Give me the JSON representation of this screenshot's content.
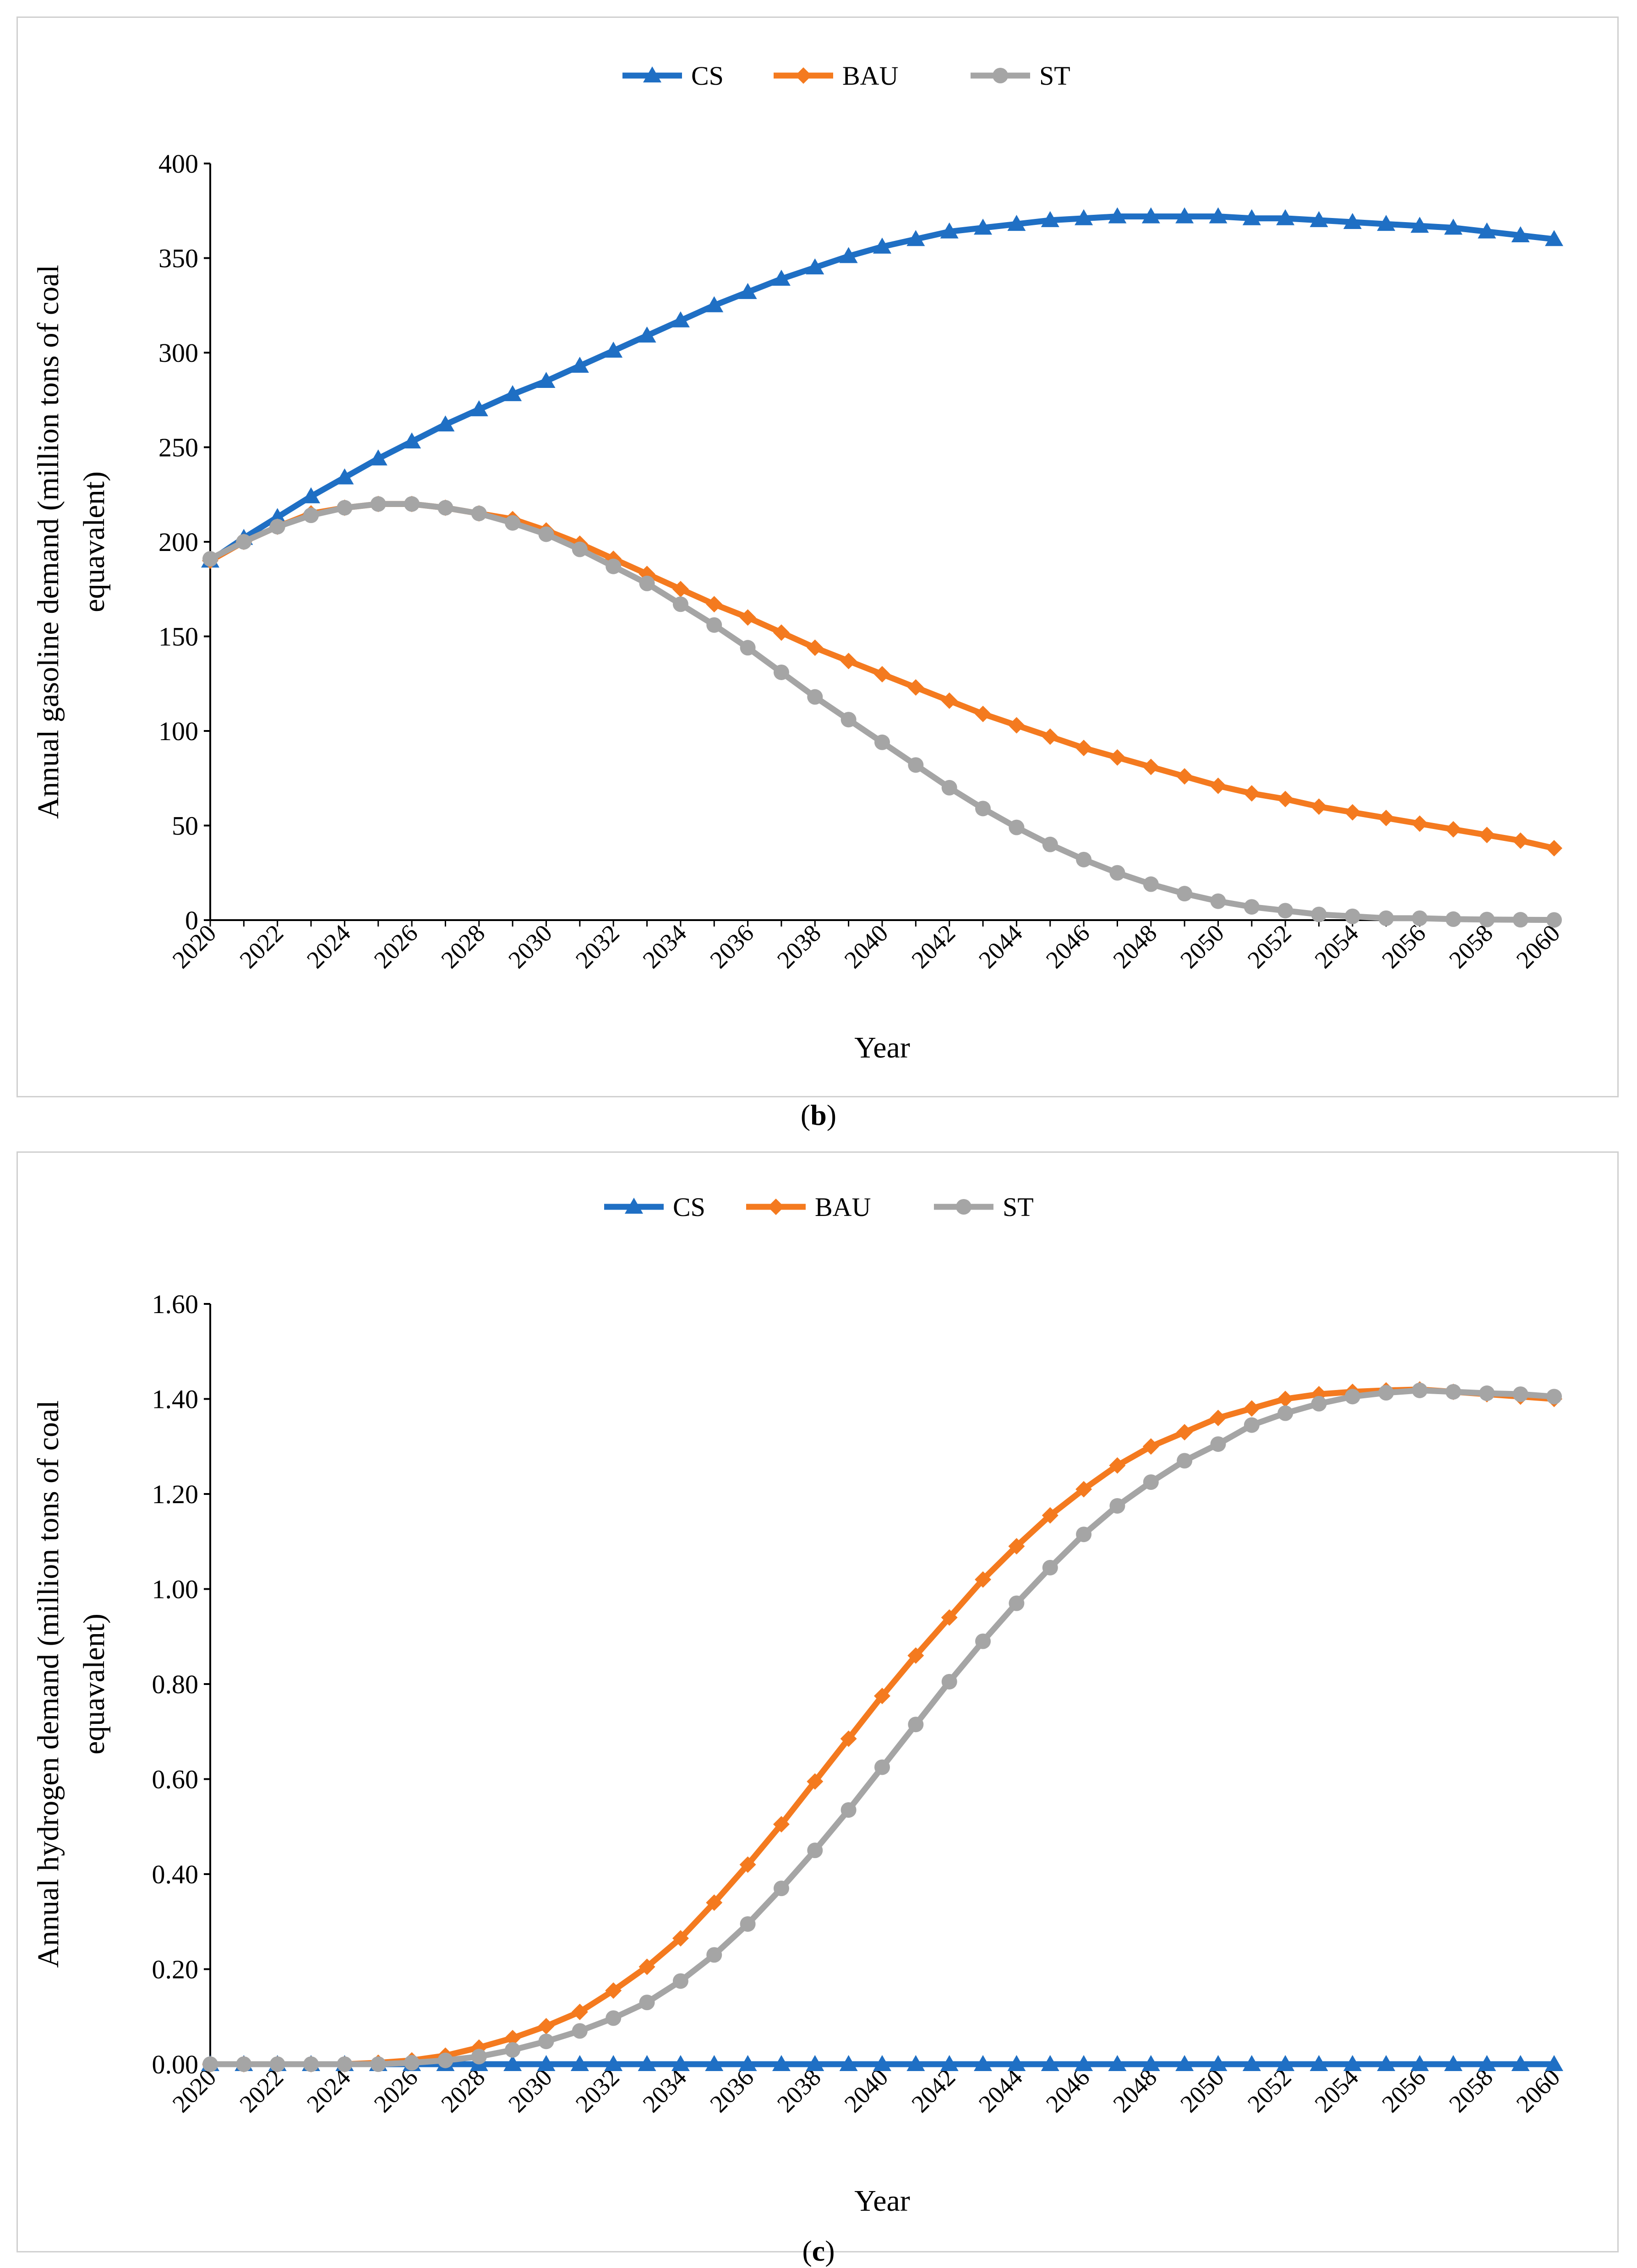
{
  "captions": {
    "b_open": "(",
    "b_letter": "b",
    "b_close": ")",
    "c_open": "(",
    "c_letter": "c",
    "c_close": ")"
  },
  "colors": {
    "CS": "#1f6fc4",
    "BAU": "#f47a1f",
    "ST": "#a5a5a5"
  },
  "chart_data": [
    {
      "id": "b",
      "type": "line",
      "title": "",
      "xlabel": "Year",
      "ylabel_line1": "Annual  gasoline demand (million tons of coal",
      "ylabel_line2": "equavalent)",
      "ylim": [
        0,
        400
      ],
      "ytick_step": 50,
      "ytick_labels": [
        "0",
        "50",
        "100",
        "150",
        "200",
        "250",
        "300",
        "350",
        "400"
      ],
      "xlim": [
        2020,
        2060
      ],
      "xtick_labels": [
        "2020",
        "2022",
        "2024",
        "2026",
        "2028",
        "2030",
        "2032",
        "2034",
        "2036",
        "2038",
        "2040",
        "2042",
        "2044",
        "2046",
        "2048",
        "2050",
        "2052",
        "2054",
        "2056",
        "2058",
        "2060"
      ],
      "legend": [
        "CS",
        "BAU",
        "ST"
      ],
      "legend_position": "top-center",
      "x": [
        2020,
        2021,
        2022,
        2023,
        2024,
        2025,
        2026,
        2027,
        2028,
        2029,
        2030,
        2031,
        2032,
        2033,
        2034,
        2035,
        2036,
        2037,
        2038,
        2039,
        2040,
        2041,
        2042,
        2043,
        2044,
        2045,
        2046,
        2047,
        2048,
        2049,
        2050,
        2051,
        2052,
        2053,
        2054,
        2055,
        2056,
        2057,
        2058,
        2059,
        2060
      ],
      "series": [
        {
          "name": "CS",
          "marker": "triangle",
          "values": [
            190,
            202,
            213,
            224,
            234,
            244,
            253,
            262,
            270,
            278,
            285,
            293,
            301,
            309,
            317,
            325,
            332,
            339,
            345,
            351,
            356,
            360,
            364,
            366,
            368,
            370,
            371,
            372,
            372,
            372,
            372,
            371,
            371,
            370,
            369,
            368,
            367,
            366,
            364,
            362,
            360
          ]
        },
        {
          "name": "BAU",
          "marker": "diamond",
          "values": [
            190,
            200,
            208,
            215,
            218,
            220,
            220,
            218,
            215,
            212,
            206,
            199,
            191,
            183,
            175,
            167,
            160,
            152,
            144,
            137,
            130,
            123,
            116,
            109,
            103,
            97,
            91,
            86,
            81,
            76,
            71,
            67,
            64,
            60,
            57,
            54,
            51,
            48,
            45,
            42,
            38
          ]
        },
        {
          "name": "ST",
          "marker": "circle",
          "values": [
            191,
            200,
            208,
            214,
            218,
            220,
            220,
            218,
            215,
            210,
            204,
            196,
            187,
            178,
            167,
            156,
            144,
            131,
            118,
            106,
            94,
            82,
            70,
            59,
            49,
            40,
            32,
            25,
            19,
            14,
            10,
            7,
            5,
            3,
            2,
            1,
            1,
            0.5,
            0.3,
            0.2,
            0.1
          ]
        }
      ]
    },
    {
      "id": "c",
      "type": "line",
      "title": "",
      "xlabel": "Year",
      "ylabel_line1": "Annual hydrogen demand (million tons of coal",
      "ylabel_line2": "equavalent)",
      "ylim": [
        0,
        1.6
      ],
      "ytick_step": 0.2,
      "ytick_labels": [
        "0.00",
        "0.20",
        "0.40",
        "0.60",
        "0.80",
        "1.00",
        "1.20",
        "1.40",
        "1.60"
      ],
      "xlim": [
        2020,
        2060
      ],
      "xtick_labels": [
        "2020",
        "2022",
        "2024",
        "2026",
        "2028",
        "2030",
        "2032",
        "2034",
        "2036",
        "2038",
        "2040",
        "2042",
        "2044",
        "2046",
        "2048",
        "2050",
        "2052",
        "2054",
        "2056",
        "2058",
        "2060"
      ],
      "legend": [
        "CS",
        "BAU",
        "ST"
      ],
      "legend_position": "top-center",
      "x": [
        2020,
        2021,
        2022,
        2023,
        2024,
        2025,
        2026,
        2027,
        2028,
        2029,
        2030,
        2031,
        2032,
        2033,
        2034,
        2035,
        2036,
        2037,
        2038,
        2039,
        2040,
        2041,
        2042,
        2043,
        2044,
        2045,
        2046,
        2047,
        2048,
        2049,
        2050,
        2051,
        2052,
        2053,
        2054,
        2055,
        2056,
        2057,
        2058,
        2059,
        2060
      ],
      "series": [
        {
          "name": "CS",
          "marker": "triangle",
          "values": [
            0,
            0,
            0,
            0,
            0,
            0,
            0,
            0,
            0,
            0,
            0,
            0,
            0,
            0,
            0,
            0,
            0,
            0,
            0,
            0,
            0,
            0,
            0,
            0,
            0,
            0,
            0,
            0,
            0,
            0,
            0,
            0,
            0,
            0,
            0,
            0,
            0,
            0,
            0,
            0,
            0
          ]
        },
        {
          "name": "BAU",
          "marker": "diamond",
          "values": [
            0,
            0,
            0,
            0,
            0,
            0.003,
            0.008,
            0.018,
            0.035,
            0.055,
            0.08,
            0.11,
            0.155,
            0.205,
            0.265,
            0.34,
            0.42,
            0.505,
            0.595,
            0.685,
            0.775,
            0.86,
            0.94,
            1.02,
            1.09,
            1.155,
            1.21,
            1.26,
            1.3,
            1.33,
            1.36,
            1.38,
            1.4,
            1.41,
            1.415,
            1.418,
            1.42,
            1.415,
            1.41,
            1.405,
            1.4
          ]
        },
        {
          "name": "ST",
          "marker": "circle",
          "values": [
            0,
            0,
            0,
            0,
            0,
            0,
            0.003,
            0.008,
            0.016,
            0.03,
            0.048,
            0.07,
            0.097,
            0.13,
            0.175,
            0.23,
            0.295,
            0.37,
            0.45,
            0.535,
            0.625,
            0.715,
            0.805,
            0.89,
            0.97,
            1.045,
            1.115,
            1.175,
            1.225,
            1.27,
            1.305,
            1.345,
            1.37,
            1.39,
            1.405,
            1.413,
            1.418,
            1.415,
            1.412,
            1.41,
            1.405
          ]
        }
      ]
    }
  ]
}
